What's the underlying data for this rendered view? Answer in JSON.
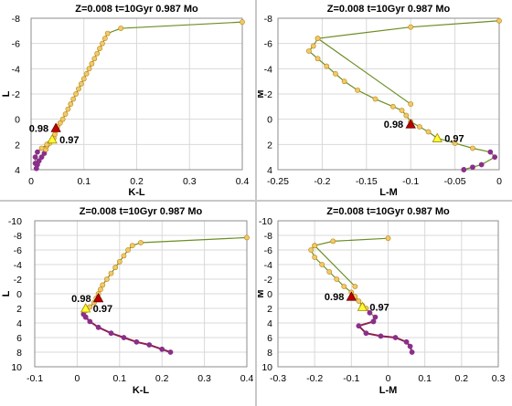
{
  "colors": {
    "grid": "#d9d9d9",
    "axis": "#8c8c8c",
    "track_line": "#6b8e23",
    "track_marker_fill": "#f2c86b",
    "track_marker_stroke": "#b8860b",
    "ms_marker": "#8a2f8a",
    "lower_ms_line": "#8b2252",
    "marker_098": "#c00000",
    "marker_097": "#ffff33",
    "marker_097_stroke": "#a08a00",
    "text": "#000000"
  },
  "chart_data": [
    {
      "type": "scatter",
      "title": "Z=0.008  t=10Gyr  0.987 Mo",
      "xlabel": "K-L",
      "ylabel": "L",
      "xlim": [
        0,
        0.4
      ],
      "ylim": [
        4,
        -8
      ],
      "y_inverted": true,
      "xticks": [
        0,
        0.1,
        0.2,
        0.3,
        0.4
      ],
      "xtick_labels": [
        "0",
        "0.1",
        "0.2",
        "0.3",
        "0.4"
      ],
      "yticks": [
        -8,
        -6,
        -4,
        -2,
        0,
        2,
        4
      ],
      "ytick_labels": [
        "-8",
        "-6",
        "-4",
        "-2",
        "0",
        "2",
        "4"
      ],
      "grid": true,
      "series": [
        {
          "points": [
            [
              0.01,
              3.9
            ],
            [
              0.012,
              3.6
            ],
            [
              0.015,
              3.3
            ],
            [
              0.02,
              3.0
            ],
            [
              0.025,
              2.7
            ],
            [
              0.028,
              2.4
            ],
            [
              0.03,
              2.1
            ],
            [
              0.035,
              1.9
            ],
            [
              0.04,
              1.7
            ],
            [
              0.043,
              1.5
            ],
            [
              0.045,
              1.2
            ],
            [
              0.047,
              0.9
            ],
            [
              0.05,
              0.6
            ],
            [
              0.055,
              0.3
            ],
            [
              0.06,
              0.0
            ],
            [
              0.065,
              -0.4
            ],
            [
              0.07,
              -0.8
            ],
            [
              0.075,
              -1.2
            ],
            [
              0.08,
              -1.6
            ],
            [
              0.085,
              -2.0
            ],
            [
              0.09,
              -2.4
            ],
            [
              0.095,
              -2.8
            ],
            [
              0.1,
              -3.2
            ],
            [
              0.105,
              -3.6
            ],
            [
              0.11,
              -4.0
            ],
            [
              0.115,
              -4.4
            ],
            [
              0.12,
              -4.8
            ],
            [
              0.125,
              -5.2
            ],
            [
              0.13,
              -5.6
            ],
            [
              0.135,
              -6.0
            ],
            [
              0.14,
              -6.4
            ],
            [
              0.145,
              -6.8
            ],
            [
              0.17,
              -7.2
            ],
            [
              0.4,
              -7.7
            ]
          ]
        },
        {
          "points": [
            [
              0.01,
              3.9
            ],
            [
              0.008,
              3.5
            ],
            [
              0.008,
              3.0
            ],
            [
              0.012,
              2.6
            ],
            [
              0.02,
              2.3
            ],
            [
              0.03,
              2.0
            ],
            [
              0.04,
              1.6
            ]
          ]
        }
      ],
      "annotations": [
        {
          "label": "0.98",
          "x": 0.047,
          "y": 0.7,
          "marker": "triangle-red"
        },
        {
          "label": "0.97",
          "x": 0.04,
          "y": 1.6,
          "marker": "triangle-yellow"
        }
      ]
    },
    {
      "type": "scatter",
      "title": "Z=0.008  t=10Gyr  0.987 Mo",
      "xlabel": "L-M",
      "ylabel": "M",
      "xlim": [
        -0.25,
        0
      ],
      "ylim": [
        4,
        -8
      ],
      "y_inverted": true,
      "xticks": [
        -0.25,
        -0.2,
        -0.15,
        -0.1,
        -0.05,
        0
      ],
      "xtick_labels": [
        "-0.25",
        "-0.2",
        "-0.15",
        "-0.1",
        "-0.05",
        "0"
      ],
      "yticks": [
        -8,
        -6,
        -4,
        -2,
        0,
        2,
        4
      ],
      "ytick_labels": [
        "-8",
        "-6",
        "-4",
        "-2",
        "0",
        "2",
        "4"
      ],
      "grid": true,
      "series": [
        {
          "points": [
            [
              -0.04,
              4.0
            ],
            [
              -0.02,
              3.6
            ],
            [
              -0.005,
              3.0
            ],
            [
              -0.01,
              2.6
            ],
            [
              -0.03,
              2.3
            ],
            [
              -0.05,
              1.9
            ],
            [
              -0.07,
              1.5
            ],
            [
              -0.08,
              1.0
            ],
            [
              -0.09,
              0.6
            ],
            [
              -0.1,
              0.2
            ],
            [
              -0.105,
              -0.3
            ],
            [
              -0.11,
              -0.7
            ],
            [
              -0.12,
              -1.0
            ],
            [
              -0.14,
              -1.6
            ],
            [
              -0.16,
              -2.3
            ],
            [
              -0.175,
              -3.0
            ],
            [
              -0.185,
              -3.6
            ],
            [
              -0.195,
              -4.2
            ],
            [
              -0.205,
              -4.8
            ],
            [
              -0.215,
              -5.4
            ],
            [
              -0.21,
              -5.8
            ],
            [
              -0.205,
              -6.4
            ],
            [
              -0.1,
              -7.3
            ],
            [
              0.0,
              -7.8
            ]
          ]
        },
        {
          "points": [
            [
              -0.205,
              -6.4
            ],
            [
              -0.1,
              -1.2
            ]
          ]
        },
        {
          "points": [
            [
              -0.04,
              4.0
            ],
            [
              -0.03,
              3.8
            ]
          ]
        }
      ],
      "annotations": [
        {
          "label": "0.98",
          "x": -0.1,
          "y": 0.4,
          "marker": "triangle-red"
        },
        {
          "label": "0.97",
          "x": -0.07,
          "y": 1.5,
          "marker": "triangle-yellow"
        }
      ]
    },
    {
      "type": "scatter",
      "title": "Z=0.008  t=10Gyr  0.987 Mo",
      "xlabel": "K-L",
      "ylabel": "L",
      "xlim": [
        -0.1,
        0.4
      ],
      "ylim": [
        10,
        -10
      ],
      "y_inverted": true,
      "xticks": [
        -0.1,
        0,
        0.1,
        0.2,
        0.3,
        0.4
      ],
      "xtick_labels": [
        "-0.1",
        "0",
        "0.1",
        "0.2",
        "0.3",
        "0.4"
      ],
      "yticks": [
        -10,
        -8,
        -6,
        -4,
        -2,
        0,
        2,
        4,
        6,
        8,
        10
      ],
      "ytick_labels": [
        "-10",
        "-8",
        "-6",
        "-4",
        "-2",
        "0",
        "2",
        "4",
        "6",
        "8",
        "10"
      ],
      "grid": true,
      "series": [
        {
          "points": [
            [
              0.02,
              3.2
            ],
            [
              0.015,
              2.8
            ],
            [
              0.02,
              2.3
            ],
            [
              0.03,
              1.8
            ],
            [
              0.04,
              1.2
            ],
            [
              0.045,
              0.6
            ],
            [
              0.05,
              0.0
            ],
            [
              0.055,
              -0.6
            ],
            [
              0.06,
              -1.2
            ],
            [
              0.07,
              -2.0
            ],
            [
              0.08,
              -2.8
            ],
            [
              0.09,
              -3.6
            ],
            [
              0.1,
              -4.4
            ],
            [
              0.11,
              -5.2
            ],
            [
              0.12,
              -6.0
            ],
            [
              0.13,
              -6.6
            ],
            [
              0.15,
              -7.0
            ],
            [
              0.4,
              -7.7
            ]
          ]
        },
        {
          "points": [
            [
              0.02,
              3.2
            ],
            [
              0.03,
              3.8
            ],
            [
              0.05,
              4.6
            ],
            [
              0.08,
              5.4
            ],
            [
              0.11,
              6.0
            ],
            [
              0.14,
              6.6
            ],
            [
              0.17,
              7.0
            ],
            [
              0.2,
              7.6
            ],
            [
              0.22,
              8.0
            ]
          ]
        }
      ],
      "annotations": [
        {
          "label": "0.98",
          "x": 0.05,
          "y": 0.6,
          "marker": "triangle-red"
        },
        {
          "label": "0.97",
          "x": 0.02,
          "y": 2.0,
          "marker": "triangle-yellow"
        }
      ]
    },
    {
      "type": "scatter",
      "title": "Z=0.008  t=10Gyr  0.987 Mo",
      "xlabel": "L-M",
      "ylabel": "M",
      "xlim": [
        -0.3,
        0.3
      ],
      "ylim": [
        10,
        -10
      ],
      "y_inverted": true,
      "xticks": [
        -0.3,
        -0.2,
        -0.1,
        0,
        0.1,
        0.2,
        0.3
      ],
      "xtick_labels": [
        "-0.3",
        "-0.2",
        "-0.1",
        "0",
        "0.1",
        "0.2",
        "0.3"
      ],
      "yticks": [
        -10,
        -8,
        -6,
        -4,
        -2,
        0,
        2,
        4,
        6,
        8,
        10
      ],
      "ytick_labels": [
        "-10",
        "-8",
        "-6",
        "-4",
        "-2",
        "0",
        "2",
        "4",
        "6",
        "8",
        "10"
      ],
      "grid": true,
      "series": [
        {
          "points": [
            [
              -0.04,
              3.8
            ],
            [
              -0.035,
              3.2
            ],
            [
              -0.05,
              2.6
            ],
            [
              -0.06,
              2.0
            ],
            [
              -0.07,
              1.6
            ],
            [
              -0.08,
              1.0
            ],
            [
              -0.09,
              0.4
            ],
            [
              -0.1,
              -0.2
            ],
            [
              -0.12,
              -1.0
            ],
            [
              -0.14,
              -2.0
            ],
            [
              -0.16,
              -3.0
            ],
            [
              -0.18,
              -4.0
            ],
            [
              -0.2,
              -5.0
            ],
            [
              -0.21,
              -6.0
            ],
            [
              -0.2,
              -6.6
            ],
            [
              -0.15,
              -7.2
            ],
            [
              0.0,
              -7.6
            ]
          ]
        },
        {
          "points": [
            [
              -0.2,
              -6.6
            ],
            [
              -0.09,
              -1.0
            ]
          ]
        },
        {
          "points": [
            [
              -0.04,
              3.8
            ],
            [
              -0.08,
              4.4
            ],
            [
              -0.06,
              5.4
            ],
            [
              -0.02,
              5.8
            ],
            [
              0.02,
              6.0
            ],
            [
              0.05,
              6.6
            ],
            [
              0.06,
              7.2
            ],
            [
              0.065,
              8.0
            ]
          ]
        }
      ],
      "annotations": [
        {
          "label": "0.98",
          "x": -0.1,
          "y": 0.4,
          "marker": "triangle-red"
        },
        {
          "label": "0.97",
          "x": -0.07,
          "y": 1.8,
          "marker": "triangle-yellow"
        }
      ]
    }
  ]
}
